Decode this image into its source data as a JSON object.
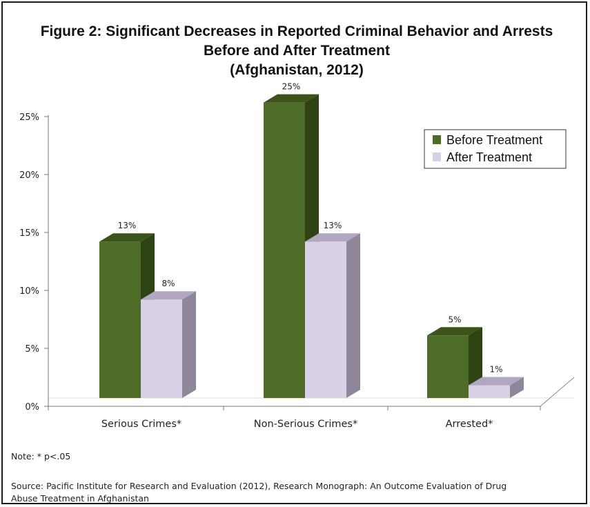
{
  "chart_data": {
    "type": "bar",
    "title_lines": [
      "Figure 2:  Significant Decreases in Reported Criminal Behavior and Arrests",
      "Before and After Treatment",
      "(Afghanistan, 2012)"
    ],
    "categories": [
      "Serious Crimes*",
      "Non-Serious Crimes*",
      "Arrested*"
    ],
    "series": [
      {
        "name": "Before Treatment",
        "values": [
          13.5,
          25.5,
          5.4
        ],
        "labels": [
          "13%",
          "25%",
          "5%"
        ],
        "color": "#4f6b28",
        "top_color": "#3c5419",
        "side_color": "#2f4214"
      },
      {
        "name": "After Treatment",
        "values": [
          8.5,
          13.5,
          1.1
        ],
        "labels": [
          "8%",
          "13%",
          "1%"
        ],
        "color": "#d9d0e6",
        "top_color": "#b1a7c0",
        "side_color": "#8f8799"
      }
    ],
    "yticks": [
      "0%",
      "5%",
      "10%",
      "15%",
      "20%",
      "25%"
    ],
    "ylim": [
      0,
      25
    ],
    "legend_position": "top-right"
  },
  "notes": {
    "significance": "Note:  * p<.05",
    "source_line1": "Source: Pacific Institute for Research and Evaluation (2012), Research Monograph: An Outcome Evaluation of Drug",
    "source_line2": "Abuse Treatment in Afghanistan"
  }
}
